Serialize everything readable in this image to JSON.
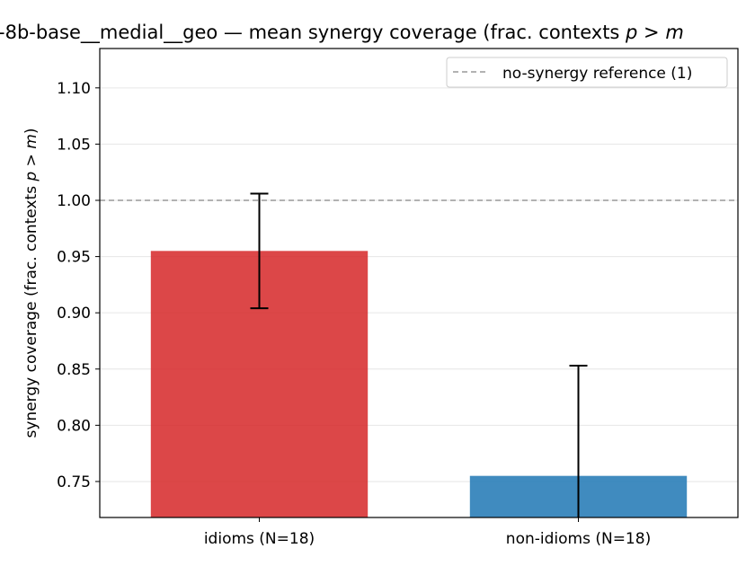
{
  "chart_data": {
    "type": "bar",
    "title_text": "-8b-base__medial__geo — mean synergy coverage  (frac. contexts ",
    "title_math": "p > m",
    "ylabel_text": "synergy coverage  (frac. contexts ",
    "ylabel_math": "p > m",
    "ylabel_close": ")",
    "categories": [
      "idioms (N=18)",
      "non-idioms (N=18)"
    ],
    "values": [
      0.955,
      0.755
    ],
    "error": [
      0.051,
      0.098
    ],
    "colors": [
      "#d62728",
      "#1f77b4"
    ],
    "ylim": [
      0.718,
      1.135
    ],
    "yticks": [
      0.75,
      0.8,
      0.85,
      0.9,
      0.95,
      1.0,
      1.05,
      1.1
    ],
    "ytick_labels": [
      "0.75",
      "0.80",
      "0.85",
      "0.90",
      "0.95",
      "1.00",
      "1.05",
      "1.10"
    ],
    "grid": "y",
    "reference_line": {
      "value": 1.0,
      "label": "no-synergy reference (1)",
      "color": "#999999"
    },
    "legend_position": "top-right"
  }
}
